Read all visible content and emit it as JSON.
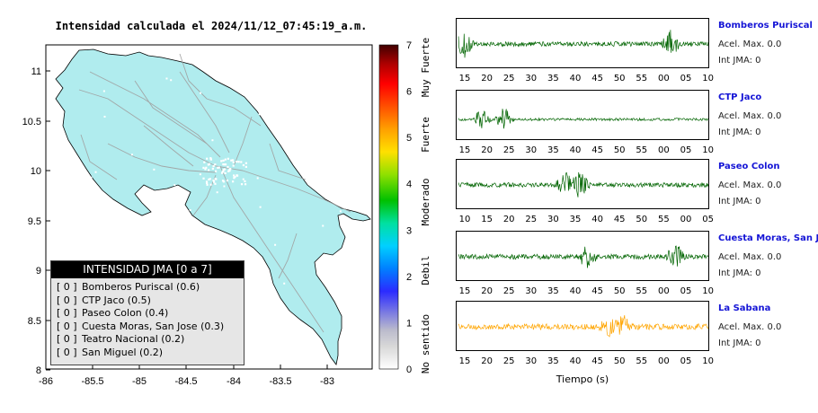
{
  "title": "Intensidad calculada el 2024/11/12_07:45:19_a.m.",
  "map": {
    "x_ticks": [
      "-86",
      "-85.5",
      "-85",
      "-84.5",
      "-84",
      "-83.5",
      "-83"
    ],
    "y_ticks": [
      "11",
      "10.5",
      "10",
      "9.5",
      "9",
      "8.5",
      "8"
    ],
    "land_color": "#b0ecee",
    "road_color": "#a0a0a0"
  },
  "colorbar": {
    "ticks": [
      "0",
      "1",
      "2",
      "3",
      "4",
      "5",
      "6",
      "7"
    ],
    "labels": [
      "No sentido",
      "Debil",
      "Moderado",
      "Fuerte",
      "Muy Fuerte"
    ]
  },
  "legend": {
    "title": "INTENSIDAD JMA [0 a 7]",
    "items": [
      {
        "int": "[ 0 ]",
        "text": "Bomberos Puriscal (0.6)"
      },
      {
        "int": "[ 0 ]",
        "text": "CTP Jaco (0.5)"
      },
      {
        "int": "[ 0 ]",
        "text": "Paseo Colon (0.4)"
      },
      {
        "int": "[ 0 ]",
        "text": "Cuesta Moras, San Jose (0.3)"
      },
      {
        "int": "[ 0 ]",
        "text": "Teatro Nacional (0.2)"
      },
      {
        "int": "[ 0 ]",
        "text": "San Miguel (0.2)"
      }
    ]
  },
  "stations": [
    {
      "name": "Bomberos Puriscal",
      "acel": "Acel. Max. 0.0",
      "int": "Int JMA: 0",
      "color": "#006400",
      "ticks": [
        "15",
        "20",
        "25",
        "30",
        "35",
        "40",
        "45",
        "50",
        "55",
        "00",
        "05",
        "10"
      ]
    },
    {
      "name": "CTP Jaco",
      "acel": "Acel. Max. 0.0",
      "int": "Int JMA: 0",
      "color": "#006400",
      "ticks": [
        "15",
        "20",
        "25",
        "30",
        "35",
        "40",
        "45",
        "50",
        "55",
        "00",
        "05",
        "10"
      ]
    },
    {
      "name": "Paseo Colon",
      "acel": "Acel. Max. 0.0",
      "int": "Int JMA: 0",
      "color": "#006400",
      "ticks": [
        "10",
        "15",
        "20",
        "25",
        "30",
        "35",
        "40",
        "45",
        "50",
        "55",
        "00",
        "05"
      ]
    },
    {
      "name": "Cuesta Moras, San Jose",
      "acel": "Acel. Max. 0.0",
      "int": "Int JMA: 0",
      "color": "#006400",
      "ticks": [
        "15",
        "20",
        "25",
        "30",
        "35",
        "40",
        "45",
        "50",
        "55",
        "00",
        "05",
        "10"
      ]
    },
    {
      "name": "La Sabana",
      "acel": "Acel. Max. 0.0",
      "int": "Int JMA: 0",
      "color": "#ffa500",
      "ticks": [
        "15",
        "20",
        "25",
        "30",
        "35",
        "40",
        "45",
        "50",
        "55",
        "00",
        "05",
        "10"
      ]
    }
  ],
  "x_axis_label": "Tiempo (s)"
}
